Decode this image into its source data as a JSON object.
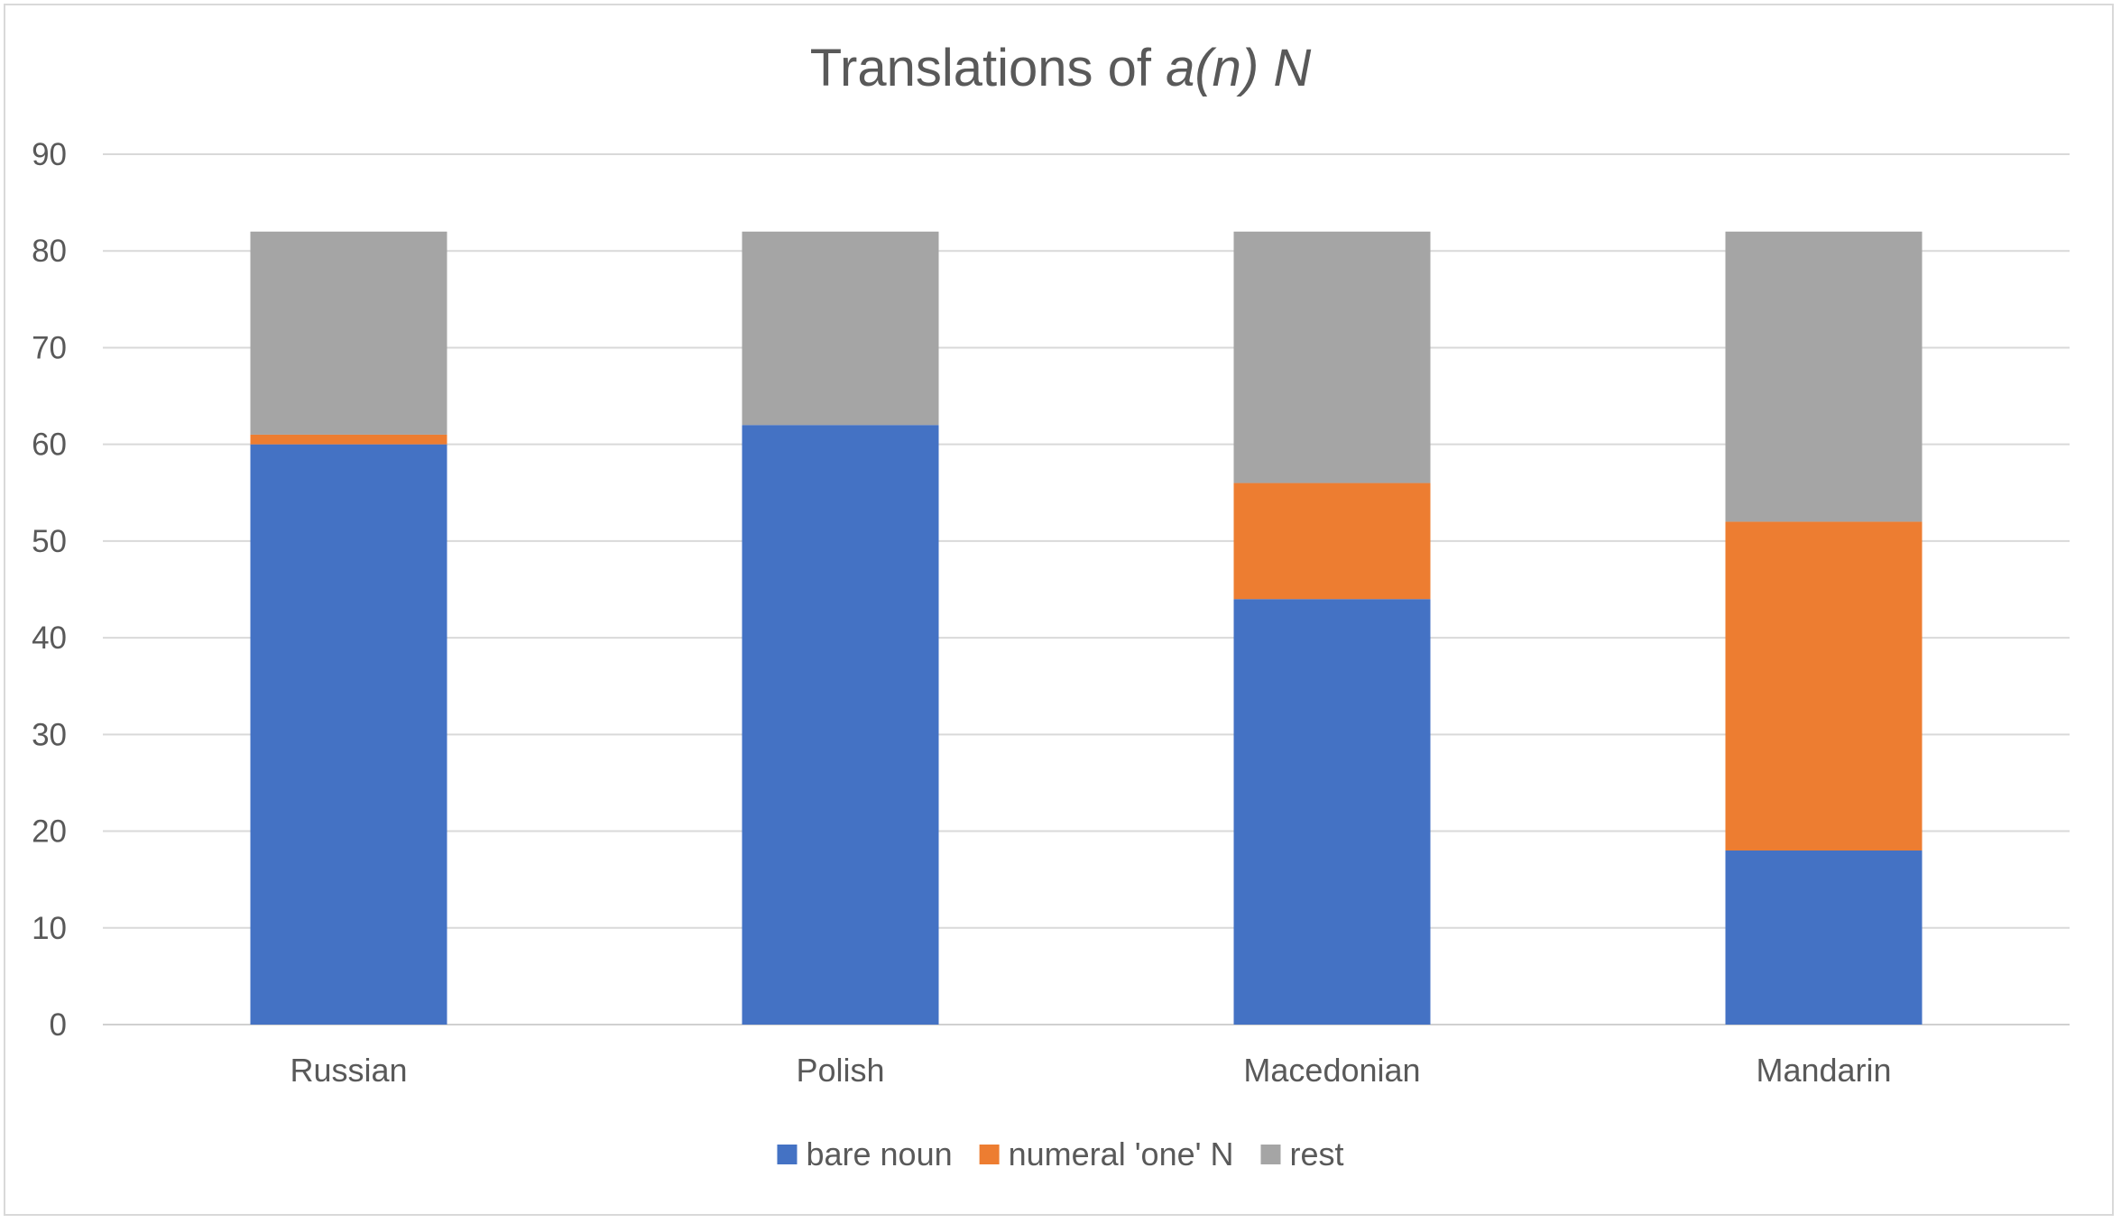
{
  "chart_data": {
    "type": "bar",
    "stacked": true,
    "title": "Translations of a(n) N",
    "title_parts": {
      "plain": "Translations of ",
      "italic": "a(n) N"
    },
    "categories": [
      "Russian",
      "Polish",
      "Macedonian",
      "Mandarin"
    ],
    "series": [
      {
        "name": "bare noun",
        "color": "#4472c4",
        "values": [
          60,
          62,
          44,
          18
        ]
      },
      {
        "name": "numeral 'one' N",
        "color": "#ed7d31",
        "values": [
          1,
          0,
          12,
          34
        ]
      },
      {
        "name": "rest",
        "color": "#a5a5a5",
        "values": [
          21,
          20,
          26,
          30
        ]
      }
    ],
    "ylim": [
      0,
      90
    ],
    "yticks": [
      0,
      10,
      20,
      30,
      40,
      50,
      60,
      70,
      80,
      90
    ],
    "grid": true,
    "legend_position": "bottom",
    "xlabel": "",
    "ylabel": ""
  }
}
